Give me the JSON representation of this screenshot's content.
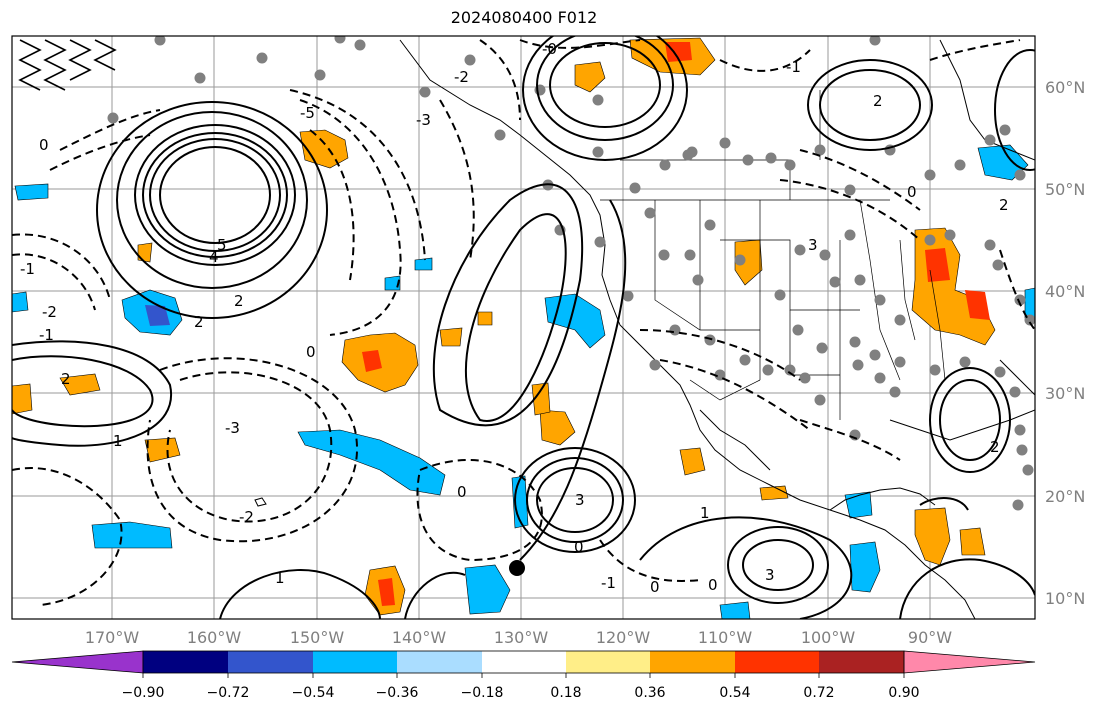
{
  "title": "2024080400 F012",
  "map": {
    "lon_labels": [
      "170°W",
      "160°W",
      "150°W",
      "140°W",
      "130°W",
      "120°W",
      "110°W",
      "100°W",
      "90°W"
    ],
    "lat_labels": [
      "60°N",
      "50°N",
      "40°N",
      "30°N",
      "20°N",
      "10°N"
    ],
    "grid": true,
    "contour_labels": [
      "0",
      "1",
      "2",
      "3",
      "4",
      "5",
      "-0",
      "-1",
      "-2",
      "-3",
      "-5"
    ]
  },
  "colorbar": {
    "tick_labels": [
      "−0.90",
      "−0.72",
      "−0.54",
      "−0.36",
      "−0.18",
      "0.18",
      "0.36",
      "0.54",
      "0.72",
      "0.90"
    ],
    "colors": [
      "#9933cc",
      "#000080",
      "#3355cc",
      "#00bbff",
      "#aaddff",
      "#ffffff",
      "#ffee88",
      "#ffa500",
      "#ff3300",
      "#aa2222",
      "#ff88aa"
    ],
    "extend": "both"
  }
}
